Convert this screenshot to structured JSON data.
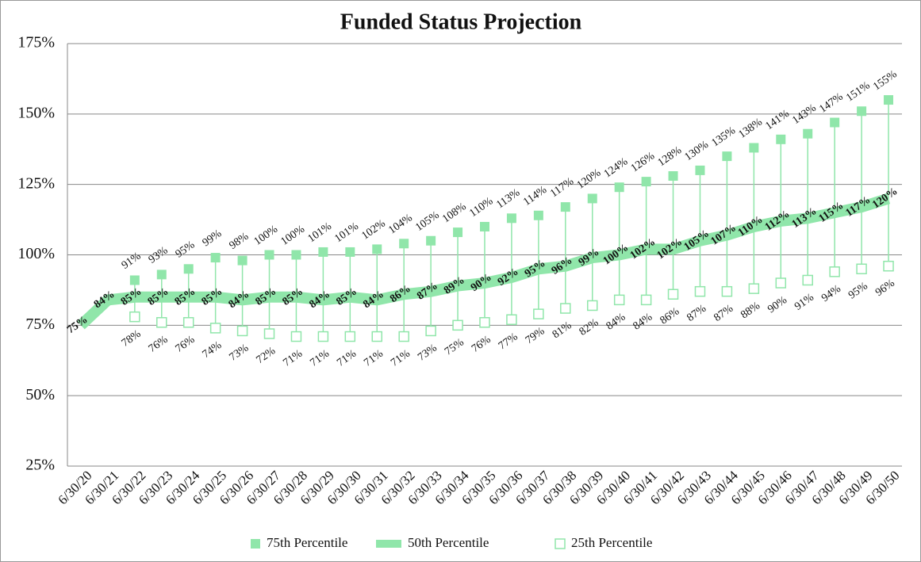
{
  "chart_data": {
    "type": "line",
    "title": "Funded Status Projection",
    "categories": [
      "6/30/20",
      "6/30/21",
      "6/30/22",
      "6/30/23",
      "6/30/24",
      "6/30/25",
      "6/30/26",
      "6/30/27",
      "6/30/28",
      "6/30/29",
      "6/30/30",
      "6/30/31",
      "6/30/32",
      "6/30/33",
      "6/30/34",
      "6/30/35",
      "6/30/36",
      "6/30/37",
      "6/30/38",
      "6/30/39",
      "6/30/40",
      "6/30/41",
      "6/30/42",
      "6/30/43",
      "6/30/44",
      "6/30/45",
      "6/30/46",
      "6/30/47",
      "6/30/48",
      "6/30/49",
      "6/30/50"
    ],
    "series": [
      {
        "name": "75th Percentile",
        "color": "#90e6aa",
        "marker": "square",
        "values": [
          null,
          null,
          91,
          93,
          95,
          99,
          98,
          100,
          100,
          101,
          101,
          102,
          104,
          105,
          108,
          110,
          113,
          114,
          117,
          120,
          124,
          126,
          128,
          130,
          135,
          138,
          141,
          143,
          147,
          151,
          155
        ],
        "value_labels": [
          null,
          null,
          "91%",
          "93%",
          "95%",
          "99%",
          "98%",
          "100%",
          "100%",
          "101%",
          "101%",
          "102%",
          "104%",
          "105%",
          "108%",
          "110%",
          "113%",
          "114%",
          "117%",
          "120%",
          "124%",
          "126%",
          "128%",
          "130%",
          "135%",
          "138%",
          "141%",
          "143%",
          "147%",
          "151%",
          "155%"
        ]
      },
      {
        "name": "50th Percentile",
        "color": "#90e6aa",
        "marker": "line",
        "values": [
          75,
          84,
          85,
          85,
          85,
          85,
          84,
          85,
          85,
          84,
          85,
          84,
          86,
          87,
          89,
          90,
          92,
          95,
          96,
          99,
          100,
          102,
          102,
          105,
          107,
          110,
          112,
          113,
          115,
          117,
          120
        ],
        "value_labels": [
          "75%",
          "84%",
          "85%",
          "85%",
          "85%",
          "85%",
          "84%",
          "85%",
          "85%",
          "84%",
          "85%",
          "84%",
          "86%",
          "87%",
          "89%",
          "90%",
          "92%",
          "95%",
          "96%",
          "99%",
          "100%",
          "102%",
          "102%",
          "105%",
          "107%",
          "110%",
          "112%",
          "113%",
          "115%",
          "117%",
          "120%"
        ]
      },
      {
        "name": "25th Percentile",
        "color": "#90e6aa",
        "marker": "hollow-square",
        "values": [
          null,
          null,
          78,
          76,
          76,
          74,
          73,
          72,
          71,
          71,
          71,
          71,
          71,
          73,
          75,
          76,
          77,
          79,
          81,
          82,
          84,
          84,
          86,
          87,
          87,
          88,
          90,
          91,
          94,
          95,
          96
        ],
        "value_labels": [
          null,
          null,
          "78%",
          "76%",
          "76%",
          "74%",
          "73%",
          "72%",
          "71%",
          "71%",
          "71%",
          "71%",
          "71%",
          "73%",
          "75%",
          "76%",
          "77%",
          "79%",
          "81%",
          "82%",
          "84%",
          "84%",
          "86%",
          "87%",
          "87%",
          "88%",
          "90%",
          "91%",
          "94%",
          "95%",
          "96%"
        ]
      }
    ],
    "ylim": [
      25,
      175
    ],
    "yticks": [
      {
        "value": 25,
        "label": "25%"
      },
      {
        "value": 50,
        "label": "50%"
      },
      {
        "value": 75,
        "label": "75%"
      },
      {
        "value": 100,
        "label": "100%"
      },
      {
        "value": 125,
        "label": "125%"
      },
      {
        "value": 150,
        "label": "150%"
      },
      {
        "value": 175,
        "label": "175%"
      }
    ],
    "grid": true,
    "legend": "bottom"
  }
}
